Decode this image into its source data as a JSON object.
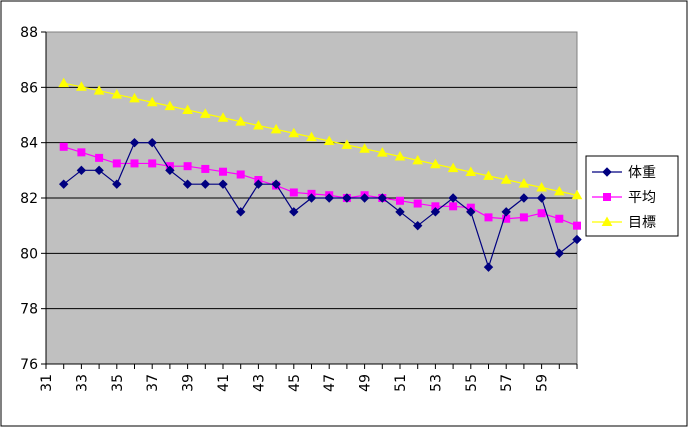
{
  "chart_data": {
    "type": "line",
    "title": "",
    "xlabel": "",
    "ylabel": "",
    "ylim": [
      76,
      88
    ],
    "y_ticks": [
      76,
      78,
      80,
      82,
      84,
      86,
      88
    ],
    "x": [
      32,
      33,
      34,
      35,
      36,
      37,
      38,
      39,
      40,
      41,
      42,
      43,
      44,
      45,
      46,
      47,
      48,
      49,
      50,
      51,
      52,
      53,
      54,
      55,
      56,
      57,
      58,
      59,
      60,
      61
    ],
    "x_ticks": [
      31,
      33,
      35,
      37,
      39,
      41,
      43,
      45,
      47,
      49,
      51,
      53,
      55,
      57,
      59
    ],
    "xlim": [
      31,
      61
    ],
    "grid": "horizontal",
    "plot_background": "#c0c0c0",
    "legend_position": "right",
    "series": [
      {
        "name": "体重",
        "color": "#000080",
        "marker": "diamond",
        "values": [
          82.5,
          83.0,
          83.0,
          82.5,
          84.0,
          84.0,
          83.0,
          82.5,
          82.5,
          82.5,
          81.5,
          82.5,
          82.5,
          81.5,
          82.0,
          82.0,
          82.0,
          82.0,
          82.0,
          81.5,
          81.0,
          81.5,
          82.0,
          81.5,
          79.5,
          81.5,
          82.0,
          82.0,
          80.0,
          80.5
        ]
      },
      {
        "name": "平均",
        "color": "#ff00ff",
        "marker": "square",
        "values": [
          83.85,
          83.65,
          83.45,
          83.25,
          83.25,
          83.25,
          83.15,
          83.15,
          83.05,
          82.95,
          82.85,
          82.65,
          82.45,
          82.2,
          82.15,
          82.1,
          82.0,
          82.1,
          82.0,
          81.9,
          81.8,
          81.7,
          81.7,
          81.65,
          81.3,
          81.25,
          81.3,
          81.45,
          81.25,
          81.0
        ]
      },
      {
        "name": "目標",
        "color": "#ffff00",
        "marker": "triangle",
        "values": [
          86.15,
          86.02,
          85.88,
          85.74,
          85.6,
          85.46,
          85.32,
          85.18,
          85.04,
          84.9,
          84.76,
          84.62,
          84.48,
          84.34,
          84.2,
          84.06,
          83.92,
          83.78,
          83.64,
          83.5,
          83.36,
          83.22,
          83.08,
          82.94,
          82.8,
          82.66,
          82.52,
          82.38,
          82.24,
          82.1
        ]
      }
    ]
  }
}
